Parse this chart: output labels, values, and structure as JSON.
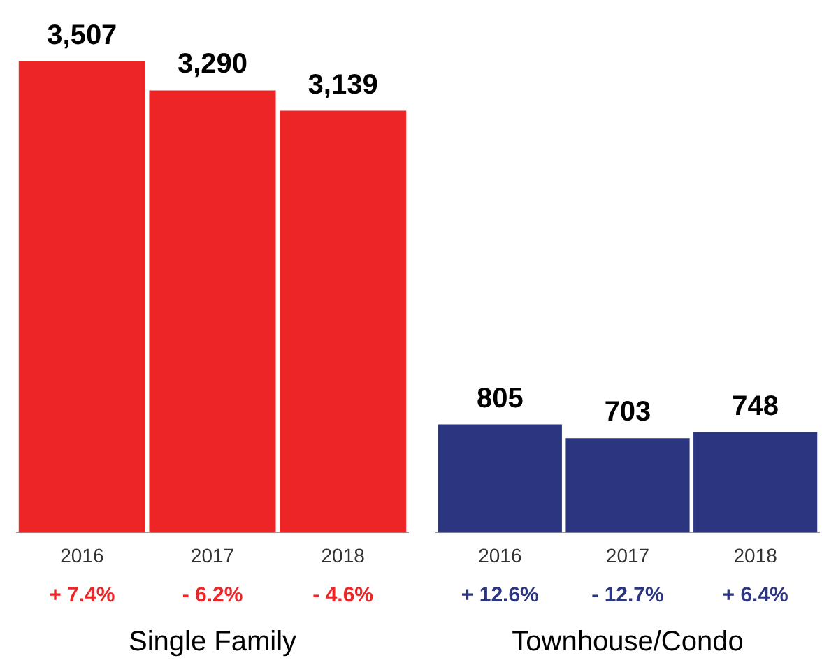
{
  "chart_data": [
    {
      "type": "bar",
      "categories": [
        "2016",
        "2017",
        "2018"
      ],
      "values": [
        3507,
        3290,
        3139
      ],
      "color": "#ee2527",
      "value_labels": [
        "3,507",
        "3,290",
        "3,139"
      ],
      "xlabel": "Single Family",
      "grid": false,
      "legend": false,
      "annotations": [
        "+ 7.4%",
        "- 6.2%",
        "- 4.6%"
      ]
    },
    {
      "type": "bar",
      "categories": [
        "2016",
        "2017",
        "2018"
      ],
      "values": [
        805,
        703,
        748
      ],
      "color": "#2b3580",
      "value_labels": [
        "805",
        "703",
        "748"
      ],
      "xlabel": "Townhouse/Condo",
      "grid": false,
      "legend": false,
      "annotations": [
        "+ 12.6%",
        "- 12.7%",
        "+ 6.4%"
      ]
    }
  ]
}
